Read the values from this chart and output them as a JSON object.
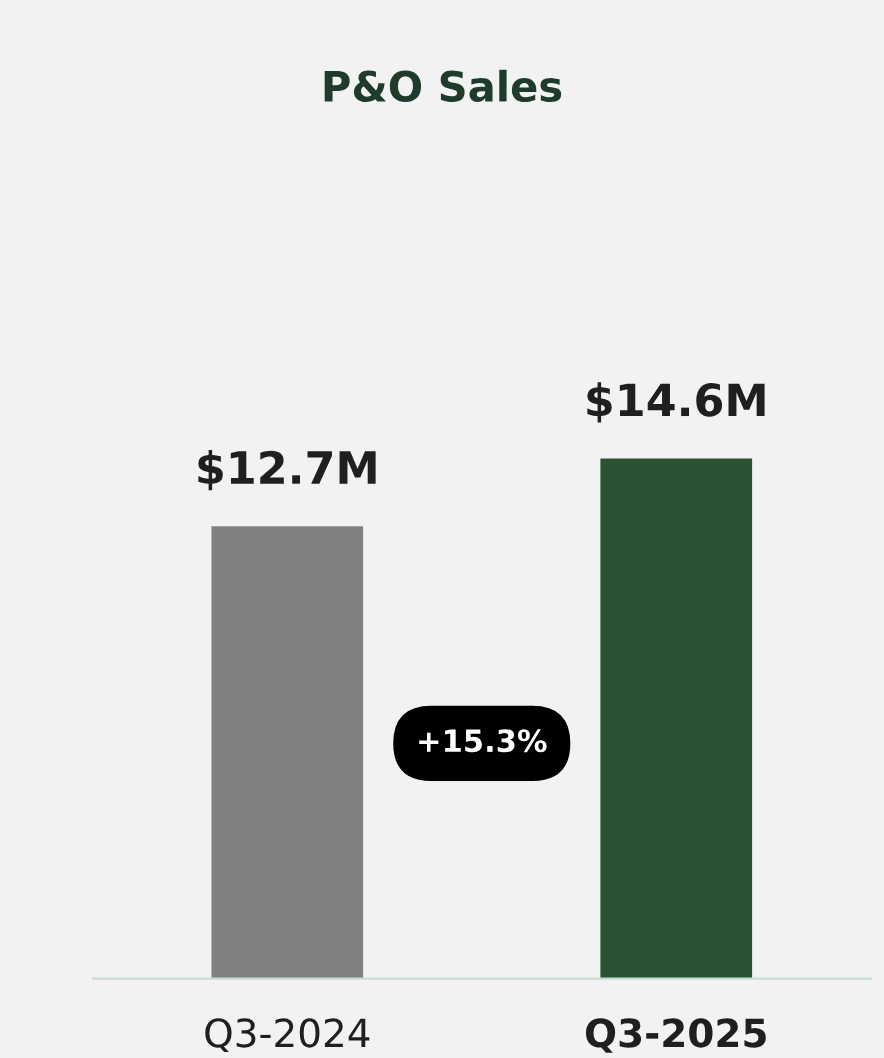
{
  "chart_data": {
    "type": "bar",
    "title": "P&O Sales",
    "categories": [
      "Q3-2024",
      "Q3-2025"
    ],
    "values": [
      12.7,
      14.6
    ],
    "colors": [
      "#808080",
      "#2c5234"
    ],
    "value_labels": [
      "$12.7M",
      "$14.6M"
    ],
    "annotations": [
      "+15.3%"
    ],
    "grid": false,
    "legend": false
  }
}
